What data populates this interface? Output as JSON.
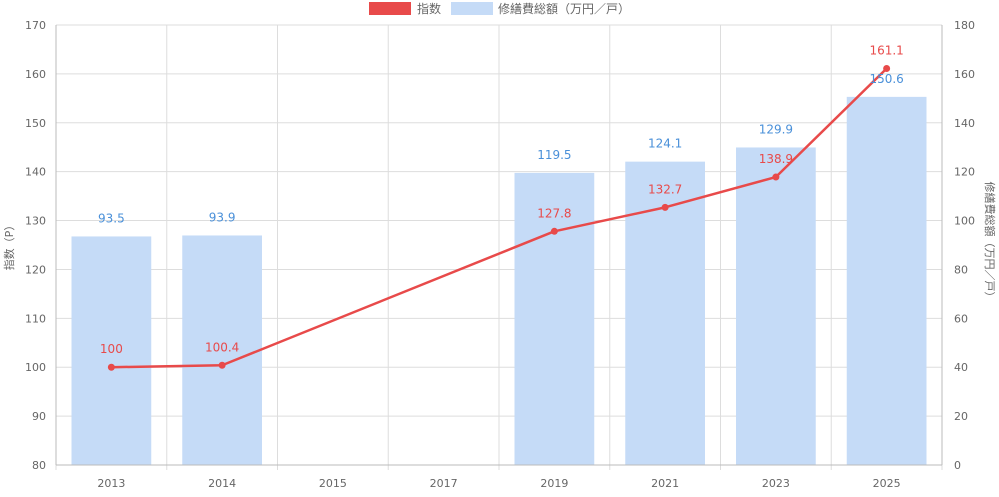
{
  "chart_data": {
    "type": "bar",
    "categories": [
      "2013",
      "2014",
      "2015",
      "2017",
      "2019",
      "2021",
      "2023",
      "2025"
    ],
    "series": [
      {
        "name": "修繕費総額（万円／戸）",
        "type": "bar",
        "axis": "right",
        "values": [
          93.5,
          93.9,
          null,
          null,
          119.5,
          124.1,
          129.9,
          150.6
        ],
        "labels": [
          "93.5",
          "93.9",
          "",
          "",
          "119.5",
          "124.1",
          "129.9",
          "150.6"
        ]
      },
      {
        "name": "指数",
        "type": "line",
        "axis": "left",
        "values": [
          100,
          100.4,
          null,
          null,
          127.8,
          132.7,
          138.9,
          161.1
        ],
        "labels": [
          "100",
          "100.4",
          "",
          "",
          "127.8",
          "132.7",
          "138.9",
          "161.1"
        ]
      }
    ],
    "y_left": {
      "label": "指数（P）",
      "range": [
        80,
        170
      ],
      "ticks": [
        "80",
        "90",
        "100",
        "110",
        "120",
        "130",
        "140",
        "150",
        "160",
        "170"
      ]
    },
    "y_right": {
      "label": "修繕費総額（万円／戸）",
      "range": [
        0,
        180
      ],
      "ticks": [
        "0",
        "20",
        "40",
        "60",
        "80",
        "100",
        "120",
        "140",
        "160",
        "180"
      ]
    },
    "legend_position": "top-center",
    "grid": true,
    "colors": {
      "bar": "#c5dbf7",
      "bar_label": "#4a90d9",
      "line": "#e84a4a",
      "line_label": "#e84a4a",
      "grid": "#dddddd",
      "axis_text": "#666666"
    }
  }
}
